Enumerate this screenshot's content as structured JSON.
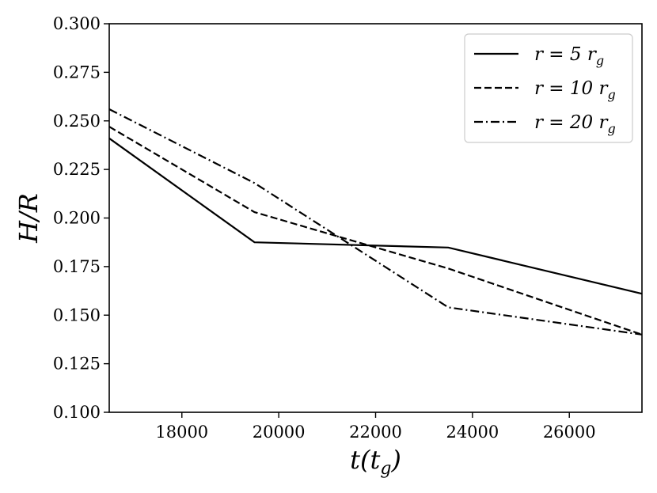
{
  "chart_data": {
    "type": "line",
    "xlabel": "t(t_g)",
    "ylabel": "H/R",
    "xlim": [
      16500,
      27500
    ],
    "ylim": [
      0.1,
      0.3
    ],
    "xticks": [
      18000,
      20000,
      22000,
      24000,
      26000
    ],
    "xtick_labels": [
      "18000",
      "20000",
      "22000",
      "24000",
      "26000"
    ],
    "yticks": [
      0.1,
      0.125,
      0.15,
      0.175,
      0.2,
      0.225,
      0.25,
      0.275,
      0.3
    ],
    "ytick_labels": [
      "0.100",
      "0.125",
      "0.150",
      "0.175",
      "0.200",
      "0.225",
      "0.250",
      "0.275",
      "0.300"
    ],
    "grid": false,
    "legend_position": "top-right",
    "series": [
      {
        "name": "r = 5 r_g",
        "line_style": "solid",
        "x": [
          16500,
          19500,
          23500,
          27500
        ],
        "y": [
          0.241,
          0.1875,
          0.1848,
          0.161
        ]
      },
      {
        "name": "r = 10 r_g",
        "line_style": "dashed",
        "x": [
          16500,
          19500,
          23500,
          27500
        ],
        "y": [
          0.247,
          0.203,
          0.174,
          0.14
        ]
      },
      {
        "name": "r = 20 r_g",
        "line_style": "dashdot",
        "x": [
          16500,
          19500,
          23500,
          27500
        ],
        "y": [
          0.256,
          0.218,
          0.154,
          0.14
        ]
      }
    ],
    "line_color": "#000000"
  }
}
